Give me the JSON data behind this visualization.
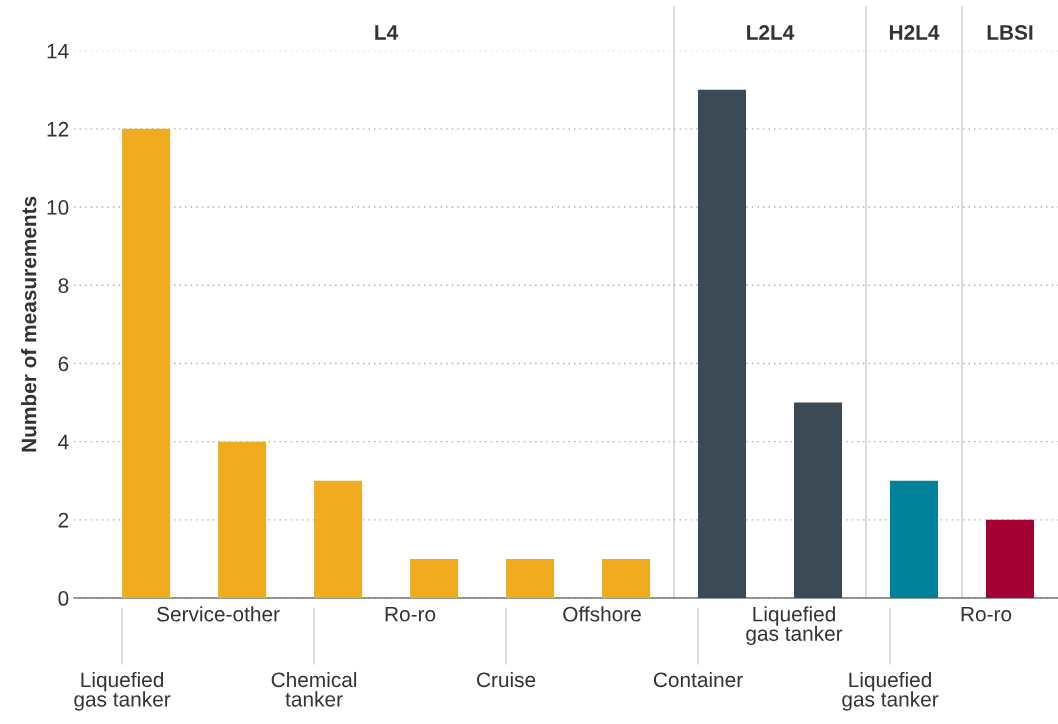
{
  "chart_data": {
    "type": "bar",
    "ylabel": "Number of measurements",
    "categories": [
      "Liquefied\ngas tanker",
      "Service-other",
      "Chemical\ntanker",
      "Ro-ro",
      "Cruise",
      "Offshore",
      "Container",
      "Liquefied\ngas tanker",
      "Liquefied\ngas tanker",
      "Ro-ro"
    ],
    "values": [
      12,
      4,
      3,
      1,
      1,
      1,
      13,
      5,
      3,
      2
    ],
    "colors": [
      "#f0ac1e",
      "#f0ac1e",
      "#f0ac1e",
      "#f0ac1e",
      "#f0ac1e",
      "#f0ac1e",
      "#3c4a55",
      "#3c4a55",
      "#00829a",
      "#a50034"
    ],
    "annotations": [
      "L4",
      "L2L4",
      "H2L4",
      "LBSI"
    ],
    "ylim": [
      0,
      14
    ],
    "yticks": [
      0,
      2,
      4,
      6,
      8,
      10,
      12,
      14
    ],
    "grid": "y"
  }
}
